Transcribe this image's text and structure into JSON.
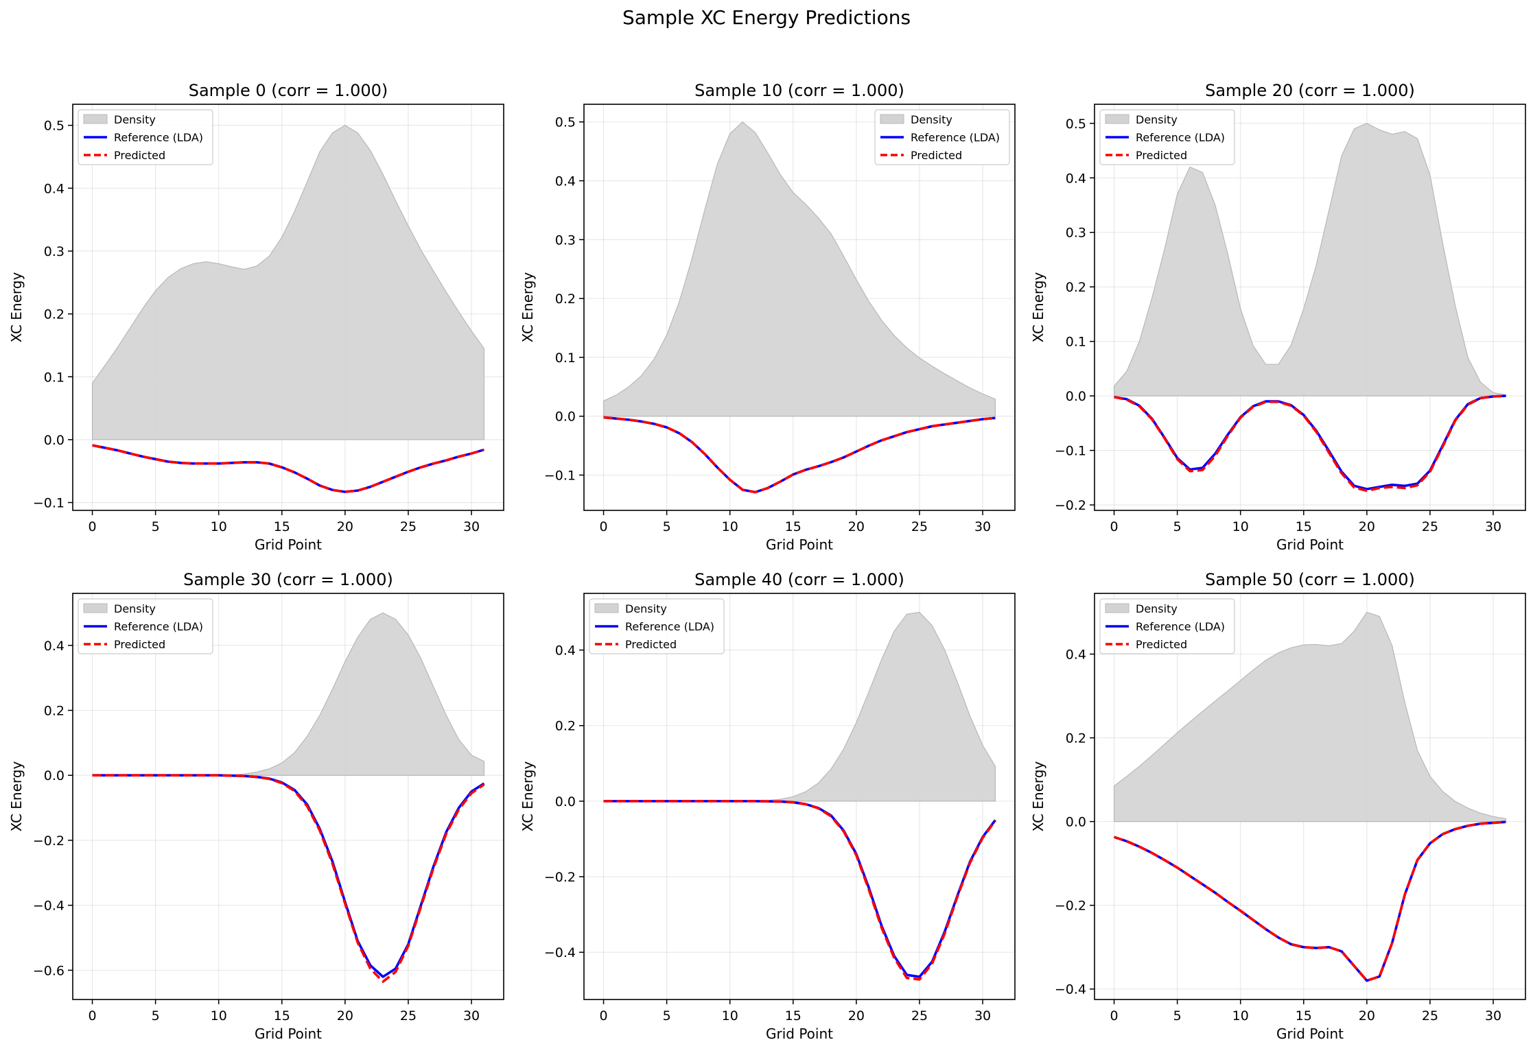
{
  "figure": {
    "title": "Sample XC Energy Predictions"
  },
  "chart_data": [
    {
      "type": "line",
      "title": "Sample 0 (corr = 1.000)",
      "xlabel": "Grid Point",
      "ylabel": "XC Energy",
      "xlim": [
        -1.55,
        32.55
      ],
      "ylim": [
        -0.1125,
        0.5335
      ],
      "xticks": [
        0,
        5,
        10,
        15,
        20,
        25,
        30
      ],
      "yticks": [
        -0.1,
        0.0,
        0.1,
        0.2,
        0.3,
        0.4,
        0.5
      ],
      "grid": true,
      "legend_position": "upper-left",
      "legend": [
        "Density",
        "Reference (LDA)",
        "Predicted"
      ],
      "x": [
        0,
        1,
        2,
        3,
        4,
        5,
        6,
        7,
        8,
        9,
        10,
        11,
        12,
        13,
        14,
        15,
        16,
        17,
        18,
        19,
        20,
        21,
        22,
        23,
        24,
        25,
        26,
        27,
        28,
        29,
        30,
        31
      ],
      "series": [
        {
          "name": "Density",
          "kind": "area",
          "color": "#d3d3d3",
          "values": [
            0.09,
            0.118,
            0.147,
            0.178,
            0.209,
            0.237,
            0.258,
            0.272,
            0.28,
            0.283,
            0.28,
            0.275,
            0.271,
            0.276,
            0.292,
            0.322,
            0.363,
            0.41,
            0.458,
            0.488,
            0.5,
            0.488,
            0.46,
            0.422,
            0.38,
            0.34,
            0.302,
            0.268,
            0.235,
            0.203,
            0.173,
            0.145
          ]
        },
        {
          "name": "Reference (LDA)",
          "kind": "line",
          "color": "#0000ff",
          "values": [
            -0.009,
            -0.013,
            -0.017,
            -0.022,
            -0.027,
            -0.031,
            -0.035,
            -0.037,
            -0.038,
            -0.038,
            -0.038,
            -0.037,
            -0.036,
            -0.036,
            -0.038,
            -0.044,
            -0.052,
            -0.062,
            -0.073,
            -0.08,
            -0.083,
            -0.081,
            -0.075,
            -0.067,
            -0.059,
            -0.051,
            -0.044,
            -0.038,
            -0.033,
            -0.027,
            -0.022,
            -0.016
          ]
        },
        {
          "name": "Predicted",
          "kind": "dashed",
          "color": "#ff0000",
          "values": [
            -0.009,
            -0.013,
            -0.017,
            -0.022,
            -0.027,
            -0.031,
            -0.035,
            -0.037,
            -0.038,
            -0.038,
            -0.038,
            -0.037,
            -0.036,
            -0.036,
            -0.038,
            -0.044,
            -0.052,
            -0.062,
            -0.073,
            -0.08,
            -0.083,
            -0.081,
            -0.075,
            -0.067,
            -0.059,
            -0.051,
            -0.044,
            -0.038,
            -0.033,
            -0.027,
            -0.022,
            -0.016
          ]
        }
      ]
    },
    {
      "type": "line",
      "title": "Sample 10 (corr = 1.000)",
      "xlabel": "Grid Point",
      "ylabel": "XC Energy",
      "xlim": [
        -1.55,
        32.55
      ],
      "ylim": [
        -0.16,
        0.53
      ],
      "xticks": [
        0,
        5,
        10,
        15,
        20,
        25,
        30
      ],
      "yticks": [
        -0.1,
        0.0,
        0.1,
        0.2,
        0.3,
        0.4,
        0.5
      ],
      "grid": true,
      "legend_position": "upper-right",
      "legend": [
        "Density",
        "Reference (LDA)",
        "Predicted"
      ],
      "x": [
        0,
        1,
        2,
        3,
        4,
        5,
        6,
        7,
        8,
        9,
        10,
        11,
        12,
        13,
        14,
        15,
        16,
        17,
        18,
        19,
        20,
        21,
        22,
        23,
        24,
        25,
        26,
        27,
        28,
        29,
        30,
        31
      ],
      "series": [
        {
          "name": "Density",
          "kind": "area",
          "color": "#d3d3d3",
          "values": [
            0.026,
            0.036,
            0.05,
            0.069,
            0.097,
            0.138,
            0.195,
            0.268,
            0.35,
            0.428,
            0.48,
            0.5,
            0.482,
            0.447,
            0.41,
            0.38,
            0.36,
            0.337,
            0.31,
            0.272,
            0.232,
            0.195,
            0.163,
            0.137,
            0.116,
            0.099,
            0.085,
            0.072,
            0.06,
            0.048,
            0.038,
            0.029
          ]
        },
        {
          "name": "Reference (LDA)",
          "kind": "line",
          "color": "#0000ff",
          "values": [
            -0.002,
            -0.004,
            -0.006,
            -0.009,
            -0.013,
            -0.019,
            -0.029,
            -0.044,
            -0.064,
            -0.087,
            -0.108,
            -0.125,
            -0.129,
            -0.122,
            -0.111,
            -0.099,
            -0.091,
            -0.085,
            -0.078,
            -0.07,
            -0.06,
            -0.05,
            -0.041,
            -0.034,
            -0.027,
            -0.022,
            -0.017,
            -0.014,
            -0.011,
            -0.008,
            -0.005,
            -0.003
          ]
        },
        {
          "name": "Predicted",
          "kind": "dashed",
          "color": "#ff0000",
          "values": [
            -0.002,
            -0.004,
            -0.006,
            -0.009,
            -0.013,
            -0.019,
            -0.029,
            -0.044,
            -0.064,
            -0.087,
            -0.108,
            -0.125,
            -0.129,
            -0.122,
            -0.111,
            -0.099,
            -0.091,
            -0.085,
            -0.078,
            -0.07,
            -0.06,
            -0.05,
            -0.041,
            -0.034,
            -0.027,
            -0.022,
            -0.017,
            -0.014,
            -0.011,
            -0.008,
            -0.005,
            -0.003
          ]
        }
      ]
    },
    {
      "type": "line",
      "title": "Sample 20 (corr = 1.000)",
      "xlabel": "Grid Point",
      "ylabel": "XC Energy",
      "xlim": [
        -1.55,
        32.55
      ],
      "ylim": [
        -0.21,
        0.535
      ],
      "xticks": [
        0,
        5,
        10,
        15,
        20,
        25,
        30
      ],
      "yticks": [
        -0.2,
        -0.1,
        0.0,
        0.1,
        0.2,
        0.3,
        0.4,
        0.5
      ],
      "grid": true,
      "legend_position": "upper-left",
      "legend": [
        "Density",
        "Reference (LDA)",
        "Predicted"
      ],
      "x": [
        0,
        1,
        2,
        3,
        4,
        5,
        6,
        7,
        8,
        9,
        10,
        11,
        12,
        13,
        14,
        15,
        16,
        17,
        18,
        19,
        20,
        21,
        22,
        23,
        24,
        25,
        26,
        27,
        28,
        29,
        30,
        31
      ],
      "series": [
        {
          "name": "Density",
          "kind": "area",
          "color": "#d3d3d3",
          "values": [
            0.018,
            0.045,
            0.1,
            0.18,
            0.27,
            0.37,
            0.42,
            0.41,
            0.35,
            0.26,
            0.16,
            0.092,
            0.058,
            0.058,
            0.093,
            0.16,
            0.24,
            0.34,
            0.44,
            0.49,
            0.5,
            0.488,
            0.48,
            0.485,
            0.472,
            0.405,
            0.28,
            0.165,
            0.07,
            0.025,
            0.006,
            0.002
          ]
        },
        {
          "name": "Reference (LDA)",
          "kind": "line",
          "color": "#0000ff",
          "values": [
            -0.002,
            -0.006,
            -0.018,
            -0.042,
            -0.077,
            -0.114,
            -0.135,
            -0.132,
            -0.106,
            -0.071,
            -0.039,
            -0.019,
            -0.01,
            -0.01,
            -0.017,
            -0.035,
            -0.064,
            -0.101,
            -0.139,
            -0.165,
            -0.171,
            -0.167,
            -0.163,
            -0.165,
            -0.161,
            -0.137,
            -0.091,
            -0.044,
            -0.015,
            -0.004,
            -0.001,
            0.0
          ]
        },
        {
          "name": "Predicted",
          "kind": "dashed",
          "color": "#ff0000",
          "values": [
            -0.002,
            -0.007,
            -0.019,
            -0.043,
            -0.078,
            -0.116,
            -0.138,
            -0.136,
            -0.11,
            -0.073,
            -0.04,
            -0.02,
            -0.011,
            -0.011,
            -0.018,
            -0.036,
            -0.066,
            -0.104,
            -0.142,
            -0.168,
            -0.174,
            -0.169,
            -0.167,
            -0.169,
            -0.164,
            -0.139,
            -0.093,
            -0.045,
            -0.016,
            -0.004,
            -0.001,
            0.0
          ]
        }
      ]
    },
    {
      "type": "line",
      "title": "Sample 30 (corr = 1.000)",
      "xlabel": "Grid Point",
      "ylabel": "XC Energy",
      "xlim": [
        -1.55,
        32.55
      ],
      "ylim": [
        -0.69,
        0.56
      ],
      "xticks": [
        0,
        5,
        10,
        15,
        20,
        25,
        30
      ],
      "yticks": [
        -0.6,
        -0.4,
        -0.2,
        0.0,
        0.2,
        0.4
      ],
      "grid": true,
      "legend_position": "upper-left",
      "legend": [
        "Density",
        "Reference (LDA)",
        "Predicted"
      ],
      "x": [
        0,
        1,
        2,
        3,
        4,
        5,
        6,
        7,
        8,
        9,
        10,
        11,
        12,
        13,
        14,
        15,
        16,
        17,
        18,
        19,
        20,
        21,
        22,
        23,
        24,
        25,
        26,
        27,
        28,
        29,
        30,
        31
      ],
      "series": [
        {
          "name": "Density",
          "kind": "area",
          "color": "#d3d3d3",
          "values": [
            0,
            0,
            0,
            0,
            0,
            0,
            0,
            0,
            0,
            0,
            0.0005,
            0.0015,
            0.004,
            0.01,
            0.02,
            0.038,
            0.07,
            0.12,
            0.185,
            0.265,
            0.35,
            0.425,
            0.48,
            0.5,
            0.48,
            0.432,
            0.36,
            0.272,
            0.185,
            0.11,
            0.062,
            0.043
          ]
        },
        {
          "name": "Reference (LDA)",
          "kind": "line",
          "color": "#0000ff",
          "values": [
            0,
            0,
            0,
            0,
            0,
            0,
            0,
            0,
            0,
            0,
            0,
            -0.001,
            -0.002,
            -0.005,
            -0.01,
            -0.022,
            -0.045,
            -0.09,
            -0.165,
            -0.265,
            -0.39,
            -0.51,
            -0.585,
            -0.62,
            -0.595,
            -0.52,
            -0.4,
            -0.28,
            -0.175,
            -0.1,
            -0.05,
            -0.025
          ]
        },
        {
          "name": "Predicted",
          "kind": "dashed",
          "color": "#ff0000",
          "values": [
            0,
            0,
            0,
            0,
            0,
            0,
            0,
            0,
            0,
            0,
            0,
            -0.001,
            -0.002,
            -0.005,
            -0.011,
            -0.024,
            -0.048,
            -0.095,
            -0.17,
            -0.272,
            -0.395,
            -0.515,
            -0.595,
            -0.635,
            -0.605,
            -0.525,
            -0.405,
            -0.285,
            -0.18,
            -0.105,
            -0.055,
            -0.028
          ]
        }
      ]
    },
    {
      "type": "line",
      "title": "Sample 40 (corr = 1.000)",
      "xlabel": "Grid Point",
      "ylabel": "XC Energy",
      "xlim": [
        -1.55,
        32.55
      ],
      "ylim": [
        -0.525,
        0.55
      ],
      "xticks": [
        0,
        5,
        10,
        15,
        20,
        25,
        30
      ],
      "yticks": [
        -0.4,
        -0.2,
        0.0,
        0.2,
        0.4
      ],
      "grid": true,
      "legend_position": "upper-left",
      "legend": [
        "Density",
        "Reference (LDA)",
        "Predicted"
      ],
      "x": [
        0,
        1,
        2,
        3,
        4,
        5,
        6,
        7,
        8,
        9,
        10,
        11,
        12,
        13,
        14,
        15,
        16,
        17,
        18,
        19,
        20,
        21,
        22,
        23,
        24,
        25,
        26,
        27,
        28,
        29,
        30,
        31
      ],
      "series": [
        {
          "name": "Density",
          "kind": "area",
          "color": "#d3d3d3",
          "values": [
            0,
            0,
            0,
            0,
            0,
            0,
            0,
            0,
            0,
            0,
            0,
            0.0003,
            0.001,
            0.002,
            0.005,
            0.012,
            0.025,
            0.048,
            0.085,
            0.138,
            0.208,
            0.29,
            0.375,
            0.45,
            0.495,
            0.5,
            0.465,
            0.4,
            0.315,
            0.225,
            0.148,
            0.092
          ]
        },
        {
          "name": "Reference (LDA)",
          "kind": "line",
          "color": "#0000ff",
          "values": [
            0,
            0,
            0,
            0,
            0,
            0,
            0,
            0,
            0,
            0,
            0,
            0,
            0,
            -0.0005,
            -0.001,
            -0.003,
            -0.008,
            -0.018,
            -0.038,
            -0.078,
            -0.14,
            -0.23,
            -0.33,
            -0.41,
            -0.46,
            -0.465,
            -0.425,
            -0.345,
            -0.25,
            -0.16,
            -0.095,
            -0.05
          ]
        },
        {
          "name": "Predicted",
          "kind": "dashed",
          "color": "#ff0000",
          "values": [
            0,
            0,
            0,
            0,
            0,
            0,
            0,
            0,
            0,
            0,
            0,
            0,
            0,
            -0.0005,
            -0.001,
            -0.003,
            -0.008,
            -0.019,
            -0.04,
            -0.08,
            -0.143,
            -0.235,
            -0.335,
            -0.415,
            -0.468,
            -0.472,
            -0.43,
            -0.35,
            -0.253,
            -0.163,
            -0.097,
            -0.052
          ]
        }
      ]
    },
    {
      "type": "line",
      "title": "Sample 50 (corr = 1.000)",
      "xlabel": "Grid Point",
      "ylabel": "XC Energy",
      "xlim": [
        -1.55,
        32.55
      ],
      "ylim": [
        -0.425,
        0.545
      ],
      "xticks": [
        0,
        5,
        10,
        15,
        20,
        25,
        30
      ],
      "yticks": [
        -0.4,
        -0.2,
        0.0,
        0.2,
        0.4
      ],
      "grid": true,
      "legend_position": "upper-left",
      "legend": [
        "Density",
        "Reference (LDA)",
        "Predicted"
      ],
      "x": [
        0,
        1,
        2,
        3,
        4,
        5,
        6,
        7,
        8,
        9,
        10,
        11,
        12,
        13,
        14,
        15,
        16,
        17,
        18,
        19,
        20,
        21,
        22,
        23,
        24,
        25,
        26,
        27,
        28,
        29,
        30,
        31
      ],
      "series": [
        {
          "name": "Density",
          "kind": "area",
          "color": "#d3d3d3",
          "values": [
            0.085,
            0.108,
            0.132,
            0.158,
            0.185,
            0.212,
            0.238,
            0.263,
            0.288,
            0.312,
            0.337,
            0.362,
            0.385,
            0.403,
            0.415,
            0.422,
            0.423,
            0.42,
            0.425,
            0.455,
            0.5,
            0.49,
            0.42,
            0.285,
            0.17,
            0.108,
            0.072,
            0.048,
            0.032,
            0.02,
            0.012,
            0.007
          ]
        },
        {
          "name": "Reference (LDA)",
          "kind": "line",
          "color": "#0000ff",
          "values": [
            -0.037,
            -0.047,
            -0.06,
            -0.075,
            -0.092,
            -0.11,
            -0.13,
            -0.15,
            -0.17,
            -0.192,
            -0.213,
            -0.235,
            -0.257,
            -0.277,
            -0.293,
            -0.3,
            -0.302,
            -0.3,
            -0.31,
            -0.345,
            -0.38,
            -0.37,
            -0.29,
            -0.175,
            -0.092,
            -0.052,
            -0.03,
            -0.018,
            -0.01,
            -0.005,
            -0.003,
            -0.001
          ]
        },
        {
          "name": "Predicted",
          "kind": "dashed",
          "color": "#ff0000",
          "values": [
            -0.037,
            -0.047,
            -0.06,
            -0.075,
            -0.092,
            -0.11,
            -0.13,
            -0.15,
            -0.17,
            -0.192,
            -0.213,
            -0.235,
            -0.257,
            -0.277,
            -0.293,
            -0.3,
            -0.302,
            -0.3,
            -0.31,
            -0.345,
            -0.38,
            -0.37,
            -0.29,
            -0.175,
            -0.092,
            -0.052,
            -0.03,
            -0.018,
            -0.01,
            -0.005,
            -0.003,
            -0.001
          ]
        }
      ]
    }
  ]
}
